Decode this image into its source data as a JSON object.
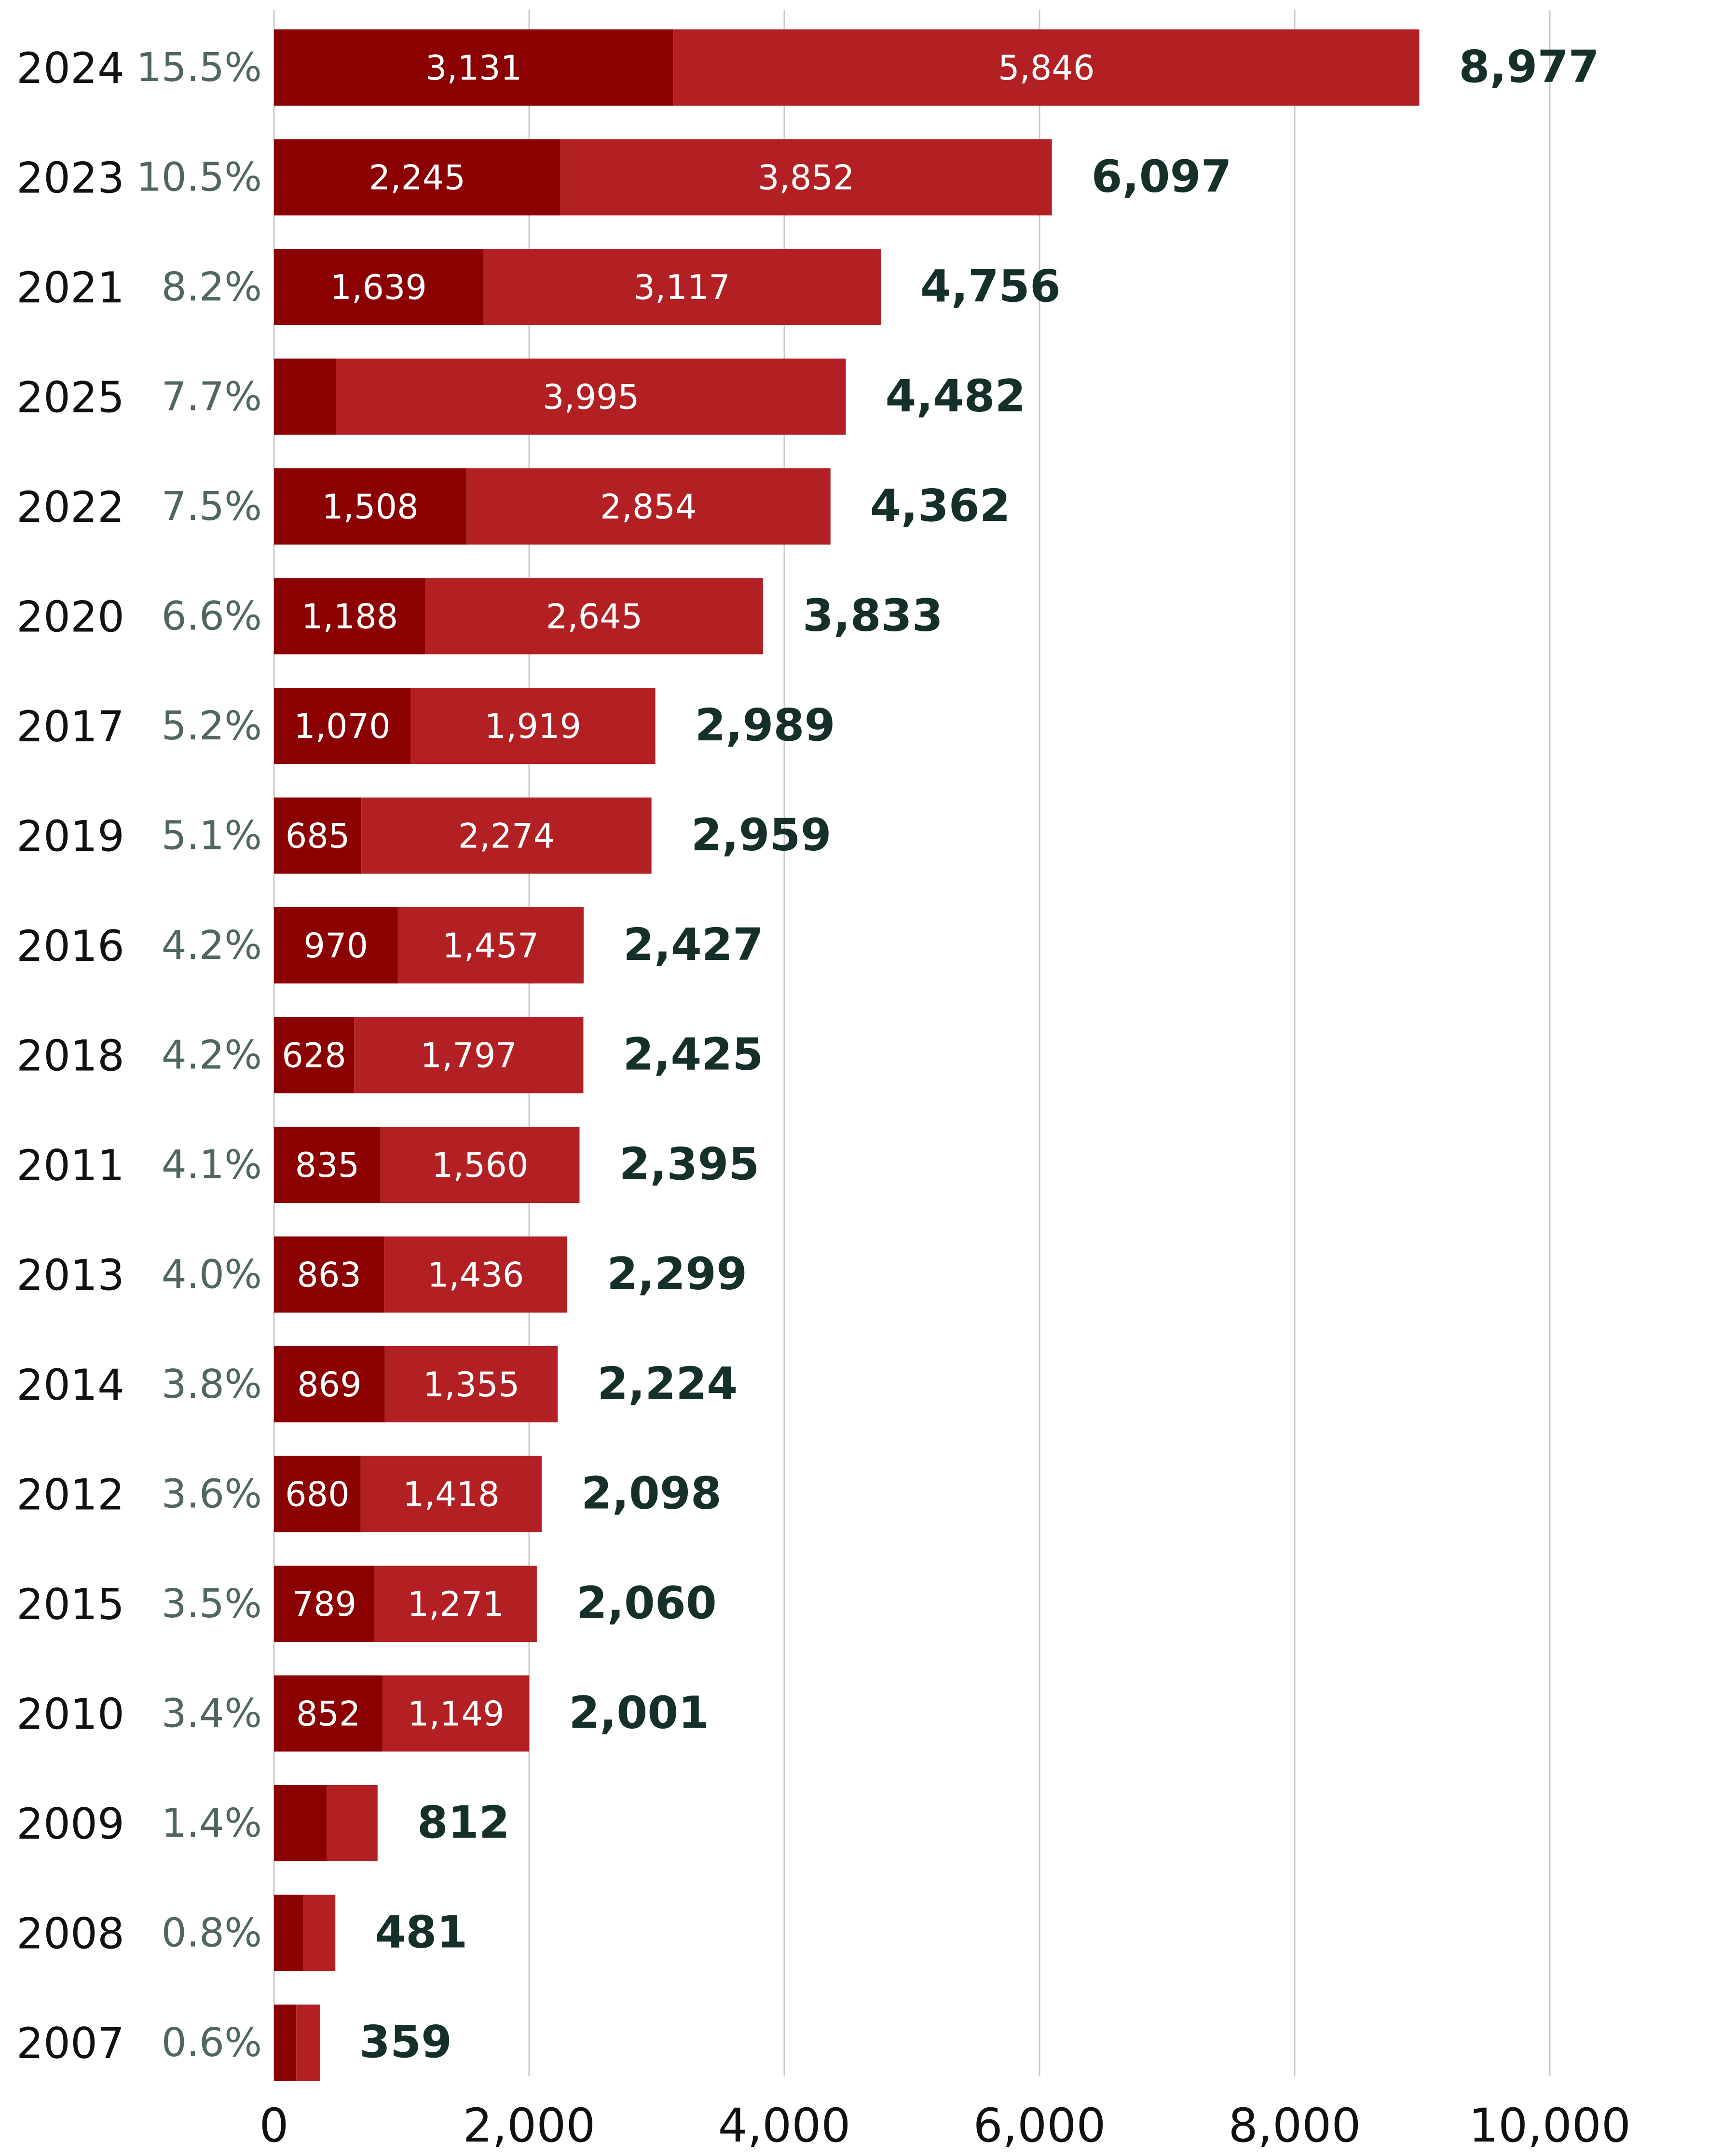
{
  "chart_data": {
    "type": "bar",
    "orientation": "horizontal",
    "stacked": true,
    "xlim": [
      0,
      10000
    ],
    "x_ticks": [
      0,
      2000,
      4000,
      6000,
      8000,
      10000
    ],
    "x_tick_labels": [
      "0",
      "2,000",
      "4,000",
      "6,000",
      "8,000",
      "10,000"
    ],
    "grid": true,
    "colors": {
      "dark": "#8b0000",
      "light": "#b22024",
      "total_text": "#15302a",
      "pct_text": "#506760"
    },
    "rows": [
      {
        "year": "2024",
        "pct": "15.5%",
        "dark": 3131,
        "light": 5846,
        "total": 8977,
        "dark_label": "3,131",
        "light_label": "5,846",
        "total_label": "8,977"
      },
      {
        "year": "2023",
        "pct": "10.5%",
        "dark": 2245,
        "light": 3852,
        "total": 6097,
        "dark_label": "2,245",
        "light_label": "3,852",
        "total_label": "6,097"
      },
      {
        "year": "2021",
        "pct": "8.2%",
        "dark": 1639,
        "light": 3117,
        "total": 4756,
        "dark_label": "1,639",
        "light_label": "3,117",
        "total_label": "4,756"
      },
      {
        "year": "2025",
        "pct": "7.7%",
        "dark": 487,
        "light": 3995,
        "total": 4482,
        "dark_label": "",
        "light_label": "3,995",
        "total_label": "4,482"
      },
      {
        "year": "2022",
        "pct": "7.5%",
        "dark": 1508,
        "light": 2854,
        "total": 4362,
        "dark_label": "1,508",
        "light_label": "2,854",
        "total_label": "4,362"
      },
      {
        "year": "2020",
        "pct": "6.6%",
        "dark": 1188,
        "light": 2645,
        "total": 3833,
        "dark_label": "1,188",
        "light_label": "2,645",
        "total_label": "3,833"
      },
      {
        "year": "2017",
        "pct": "5.2%",
        "dark": 1070,
        "light": 1919,
        "total": 2989,
        "dark_label": "1,070",
        "light_label": "1,919",
        "total_label": "2,989"
      },
      {
        "year": "2019",
        "pct": "5.1%",
        "dark": 685,
        "light": 2274,
        "total": 2959,
        "dark_label": "685",
        "light_label": "2,274",
        "total_label": "2,959"
      },
      {
        "year": "2016",
        "pct": "4.2%",
        "dark": 970,
        "light": 1457,
        "total": 2427,
        "dark_label": "970",
        "light_label": "1,457",
        "total_label": "2,427"
      },
      {
        "year": "2018",
        "pct": "4.2%",
        "dark": 628,
        "light": 1797,
        "total": 2425,
        "dark_label": "628",
        "light_label": "1,797",
        "total_label": "2,425"
      },
      {
        "year": "2011",
        "pct": "4.1%",
        "dark": 835,
        "light": 1560,
        "total": 2395,
        "dark_label": "835",
        "light_label": "1,560",
        "total_label": "2,395"
      },
      {
        "year": "2013",
        "pct": "4.0%",
        "dark": 863,
        "light": 1436,
        "total": 2299,
        "dark_label": "863",
        "light_label": "1,436",
        "total_label": "2,299"
      },
      {
        "year": "2014",
        "pct": "3.8%",
        "dark": 869,
        "light": 1355,
        "total": 2224,
        "dark_label": "869",
        "light_label": "1,355",
        "total_label": "2,224"
      },
      {
        "year": "2012",
        "pct": "3.6%",
        "dark": 680,
        "light": 1418,
        "total": 2098,
        "dark_label": "680",
        "light_label": "1,418",
        "total_label": "2,098"
      },
      {
        "year": "2015",
        "pct": "3.5%",
        "dark": 789,
        "light": 1271,
        "total": 2060,
        "dark_label": "789",
        "light_label": "1,271",
        "total_label": "2,060"
      },
      {
        "year": "2010",
        "pct": "3.4%",
        "dark": 852,
        "light": 1149,
        "total": 2001,
        "dark_label": "852",
        "light_label": "1,149",
        "total_label": "2,001"
      },
      {
        "year": "2009",
        "pct": "1.4%",
        "dark": 412,
        "light": 400,
        "total": 812,
        "dark_label": "",
        "light_label": "",
        "total_label": "812"
      },
      {
        "year": "2008",
        "pct": "0.8%",
        "dark": 230,
        "light": 251,
        "total": 481,
        "dark_label": "",
        "light_label": "",
        "total_label": "481"
      },
      {
        "year": "2007",
        "pct": "0.6%",
        "dark": 175,
        "light": 184,
        "total": 359,
        "dark_label": "",
        "light_label": "",
        "total_label": "359"
      }
    ]
  }
}
